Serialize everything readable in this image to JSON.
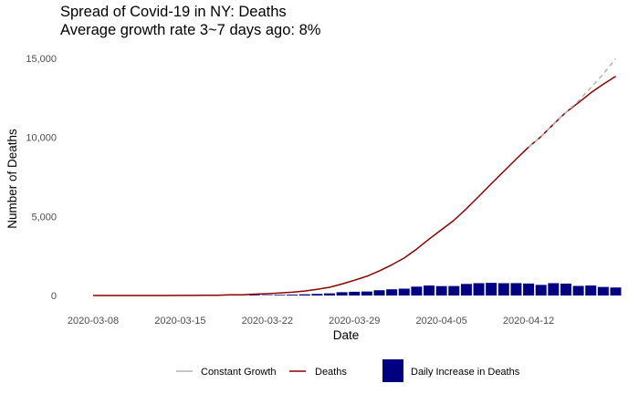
{
  "chart_data": {
    "type": "bar",
    "title": "Spread of Covid-19 in NY: Deaths",
    "subtitle": "Average growth rate 3~7 days ago: 8%",
    "xlabel": "Date",
    "ylabel": "Number of Deaths",
    "x_start": "2020-03-08",
    "x_ticks": [
      "2020-03-08",
      "2020-03-15",
      "2020-03-22",
      "2020-03-29",
      "2020-04-05",
      "2020-04-12"
    ],
    "y_ticks": [
      0,
      5000,
      10000,
      15000
    ],
    "y_tick_labels": [
      "0",
      "5,000",
      "10,000",
      "15,000"
    ],
    "ylim": [
      -450,
      15700
    ],
    "grid": false,
    "legend_position": "bottom",
    "dates": [
      "2020-03-08",
      "2020-03-09",
      "2020-03-10",
      "2020-03-11",
      "2020-03-12",
      "2020-03-13",
      "2020-03-14",
      "2020-03-15",
      "2020-03-16",
      "2020-03-17",
      "2020-03-18",
      "2020-03-19",
      "2020-03-20",
      "2020-03-21",
      "2020-03-22",
      "2020-03-23",
      "2020-03-24",
      "2020-03-25",
      "2020-03-26",
      "2020-03-27",
      "2020-03-28",
      "2020-03-29",
      "2020-03-30",
      "2020-03-31",
      "2020-04-01",
      "2020-04-02",
      "2020-04-03",
      "2020-04-04",
      "2020-04-05",
      "2020-04-06",
      "2020-04-07",
      "2020-04-08",
      "2020-04-09",
      "2020-04-10",
      "2020-04-11",
      "2020-04-12",
      "2020-04-13",
      "2020-04-14",
      "2020-04-15",
      "2020-04-16",
      "2020-04-17",
      "2020-04-18",
      "2020-04-19"
    ],
    "series": [
      {
        "name": "Deaths",
        "type": "line",
        "color": "#8b0000",
        "values": [
          0,
          0,
          0,
          0,
          0,
          0,
          2,
          3,
          7,
          13,
          15,
          38,
          44,
          84,
          114,
          157,
          210,
          285,
          385,
          519,
          728,
          965,
          1218,
          1550,
          1941,
          2373,
          2935,
          3565,
          4159,
          4758,
          5489,
          6268,
          7067,
          7844,
          8627,
          9385,
          10056,
          10834,
          11586,
          12192,
          12822,
          13362,
          13869
        ]
      },
      {
        "name": "Constant Growth",
        "type": "line",
        "style": "dashed",
        "color": "#b3b3b3",
        "x": [
          "2020-04-12",
          "2020-04-13",
          "2020-04-14",
          "2020-04-15",
          "2020-04-16",
          "2020-04-17",
          "2020-04-18",
          "2020-04-19"
        ],
        "values": [
          9385,
          10056,
          10834,
          11586,
          12300,
          13150,
          14000,
          14980
        ]
      },
      {
        "name": "Daily Increase in Deaths",
        "type": "bar",
        "color": "#000080",
        "values": [
          0,
          0,
          0,
          0,
          0,
          0,
          2,
          1,
          4,
          6,
          2,
          23,
          6,
          40,
          30,
          43,
          53,
          75,
          100,
          134,
          209,
          237,
          253,
          332,
          391,
          432,
          562,
          630,
          594,
          599,
          731,
          779,
          799,
          777,
          783,
          758,
          671,
          778,
          752,
          606,
          630,
          540,
          507
        ]
      }
    ]
  }
}
